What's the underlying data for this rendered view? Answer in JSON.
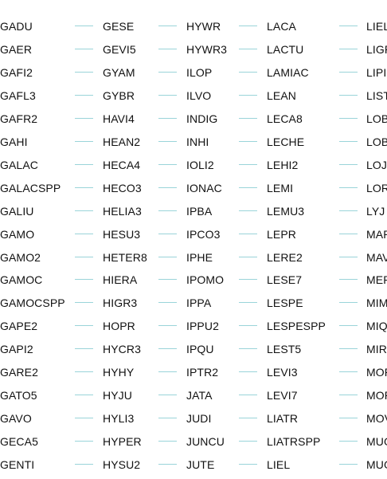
{
  "columns": [
    {
      "items": [
        "GADU",
        "GAER",
        "GAFI2",
        "GAFL3",
        "GAFR2",
        "GAHI",
        "GALAC",
        "GALACSPP",
        "GALIU",
        "GAMO",
        "GAMO2",
        "GAMOC",
        "GAMOCSPP",
        "GAPE2",
        "GAPI2",
        "GARE2",
        "GATO5",
        "GAVO",
        "GECA5",
        "GENTI"
      ]
    },
    {
      "items": [
        "GESE",
        "GEVI5",
        "GYAM",
        "GYBR",
        "HAVI4",
        "HEAN2",
        "HECA4",
        "HECO3",
        "HELIA3",
        "HESU3",
        "HETER8",
        "HIERA",
        "HIGR3",
        "HOPR",
        "HYCR3",
        "HYHY",
        "HYJU",
        "HYLI3",
        "HYPER",
        "HYSU2"
      ]
    },
    {
      "items": [
        "HYWR",
        "HYWR3",
        "ILOP",
        "ILVO",
        "INDIG",
        "INHI",
        "IOLI2",
        "IONAC",
        "IPBA",
        "IPCO3",
        "IPHE",
        "IPOMO",
        "IPPA",
        "IPPU2",
        "IPQU",
        "IPTR2",
        "JATA",
        "JUDI",
        "JUNCU",
        "JUTE"
      ]
    },
    {
      "items": [
        "LACA",
        "LACTU",
        "LAMIAC",
        "LEAN",
        "LECA8",
        "LECHE",
        "LEHI2",
        "LEMI",
        "LEMU3",
        "LEPR",
        "LERE2",
        "LESE7",
        "LESPE",
        "LESPESPP",
        "LEST5",
        "LEVI3",
        "LEVI7",
        "LIATR",
        "LIATRSPP",
        "LIEL"
      ]
    },
    {
      "items": [
        "LIEL",
        "LIGR",
        "LIPI",
        "LIST",
        "LOB",
        "LOB",
        "LOJ",
        "LOR",
        "LYJ",
        "MAR",
        "MAV",
        "MER",
        "MIM",
        "MIQ",
        "MIR",
        "MOR",
        "MOR",
        "MOV",
        "MUG",
        "MUG"
      ]
    }
  ]
}
